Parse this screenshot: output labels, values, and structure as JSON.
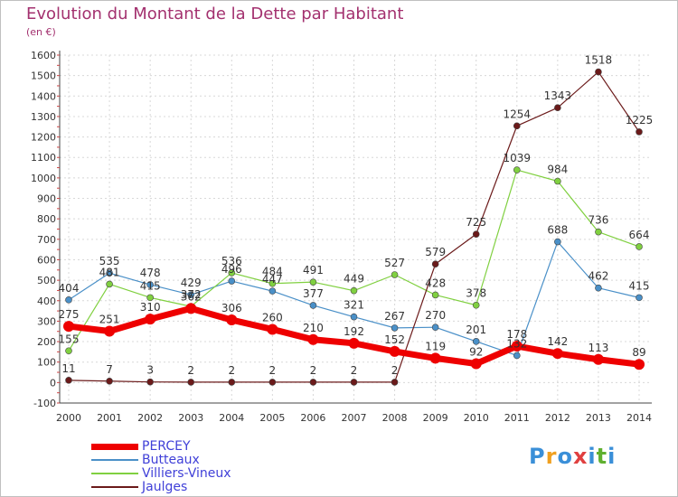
{
  "title": "Evolution du Montant de la Dette par Habitant",
  "unit": "(en €)",
  "logo": {
    "text": "Proxiti",
    "colors": [
      "#3a8fd8",
      "#f0a020",
      "#3a8fd8",
      "#e04040",
      "#3a8fd8",
      "#60b030",
      "#3a8fd8"
    ]
  },
  "chart_data": {
    "type": "line",
    "x": [
      2000,
      2001,
      2002,
      2003,
      2004,
      2005,
      2006,
      2007,
      2008,
      2009,
      2010,
      2011,
      2012,
      2013,
      2014
    ],
    "ylim": [
      -100,
      1600
    ],
    "yticks": [
      -100,
      0,
      100,
      200,
      300,
      400,
      500,
      600,
      700,
      800,
      900,
      1000,
      1100,
      1200,
      1300,
      1400,
      1500,
      1600
    ],
    "grid": true,
    "legend_position": "bottom-left",
    "series": [
      {
        "name": "PERCEY",
        "color": "#ee0000",
        "values": [
          275,
          251,
          310,
          362,
          306,
          260,
          210,
          192,
          152,
          119,
          92,
          178,
          142,
          113,
          89
        ]
      },
      {
        "name": "Butteaux",
        "color": "#4a90c8",
        "values": [
          404,
          535,
          478,
          429,
          496,
          447,
          377,
          321,
          267,
          270,
          201,
          132,
          688,
          462,
          415
        ]
      },
      {
        "name": "Villiers-Vineux",
        "color": "#80d040",
        "values": [
          155,
          481,
          415,
          372,
          536,
          484,
          491,
          449,
          527,
          428,
          378,
          1039,
          984,
          736,
          664
        ]
      },
      {
        "name": "Jaulges",
        "color": "#6b1a1a",
        "values": [
          11,
          7,
          3,
          2,
          2,
          2,
          2,
          2,
          2,
          579,
          725,
          1254,
          1343,
          1518,
          1225
        ]
      }
    ]
  }
}
